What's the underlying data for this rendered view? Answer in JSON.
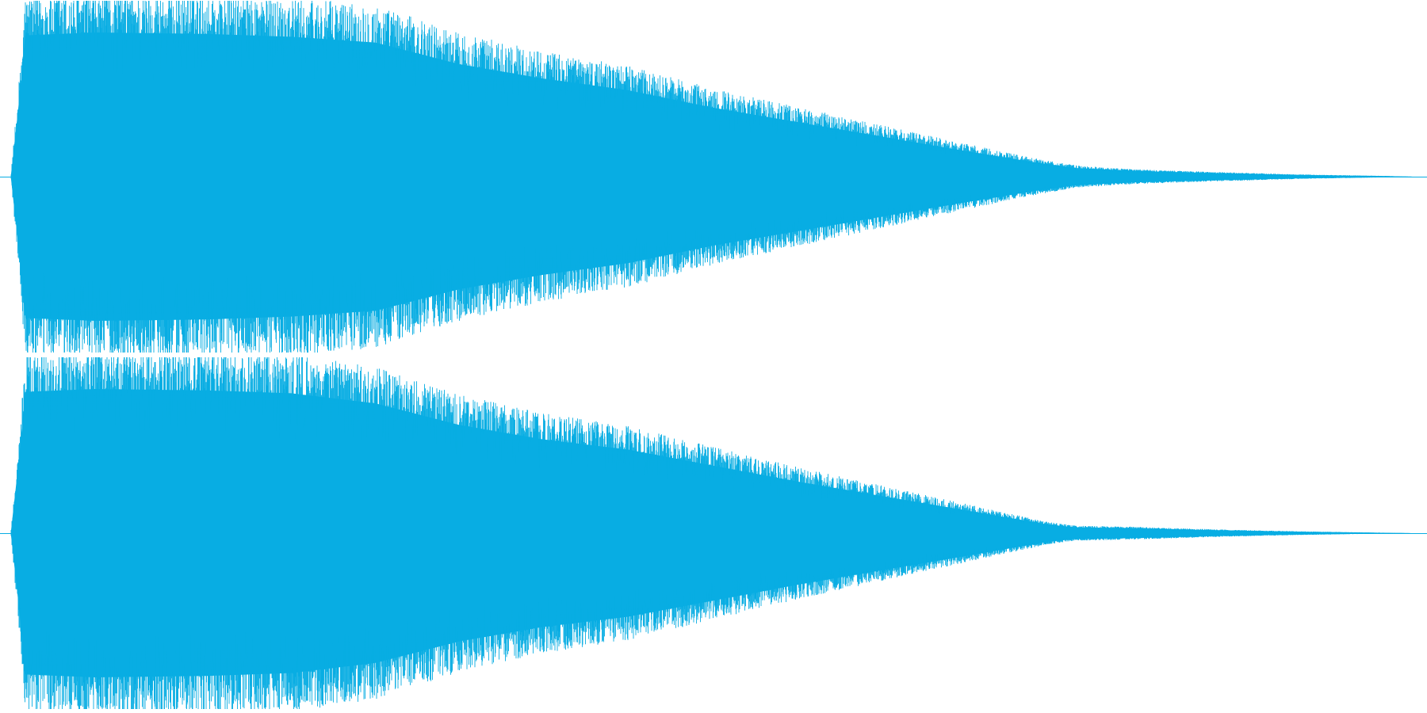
{
  "view": {
    "background_color": "#ffffff",
    "waveform_color": "#08ade3",
    "channel_count": 2
  },
  "channels": [
    {
      "name": "left",
      "envelope": [
        [
          0.0,
          0.02
        ],
        [
          0.006,
          0.55
        ],
        [
          0.01,
          0.98
        ],
        [
          0.06,
          1.0
        ],
        [
          0.14,
          0.99
        ],
        [
          0.2,
          0.97
        ],
        [
          0.26,
          0.93
        ],
        [
          0.32,
          0.78
        ],
        [
          0.38,
          0.68
        ],
        [
          0.44,
          0.6
        ],
        [
          0.5,
          0.48
        ],
        [
          0.56,
          0.38
        ],
        [
          0.62,
          0.28
        ],
        [
          0.68,
          0.18
        ],
        [
          0.73,
          0.1
        ],
        [
          0.76,
          0.06
        ],
        [
          0.8,
          0.04
        ],
        [
          0.86,
          0.025
        ],
        [
          0.92,
          0.012
        ],
        [
          0.98,
          0.004
        ],
        [
          1.0,
          0.0
        ]
      ]
    },
    {
      "name": "right",
      "envelope": [
        [
          0.0,
          0.02
        ],
        [
          0.006,
          0.55
        ],
        [
          0.01,
          0.98
        ],
        [
          0.06,
          1.0
        ],
        [
          0.14,
          0.99
        ],
        [
          0.2,
          0.97
        ],
        [
          0.26,
          0.9
        ],
        [
          0.32,
          0.75
        ],
        [
          0.38,
          0.65
        ],
        [
          0.44,
          0.58
        ],
        [
          0.5,
          0.47
        ],
        [
          0.56,
          0.36
        ],
        [
          0.62,
          0.26
        ],
        [
          0.68,
          0.16
        ],
        [
          0.74,
          0.06
        ],
        [
          0.76,
          0.04
        ],
        [
          0.8,
          0.035
        ],
        [
          0.86,
          0.02
        ],
        [
          0.92,
          0.01
        ],
        [
          0.975,
          0.003
        ],
        [
          1.0,
          0.0
        ]
      ]
    }
  ]
}
